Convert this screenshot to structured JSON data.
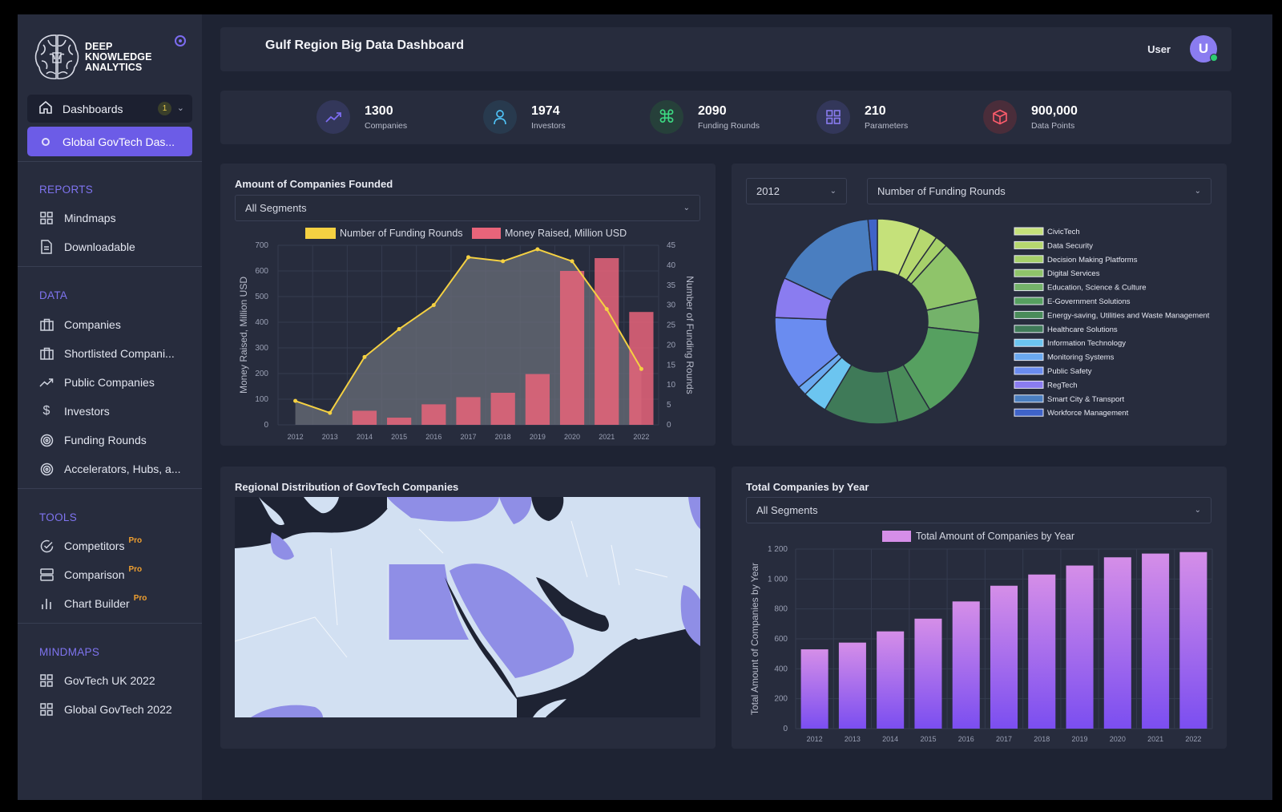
{
  "brand": {
    "line1": "DEEP",
    "line2": "KNOWLEDGE",
    "line3": "ANALYTICS"
  },
  "sidebar": {
    "dashboards": {
      "label": "Dashboards",
      "badge": "1"
    },
    "active_item": "Global GovTech Das...",
    "sections": {
      "reports": "REPORTS",
      "data": "DATA",
      "tools": "TOOLS",
      "mindmaps": "MINDMAPS"
    },
    "reports": [
      {
        "label": "Mindmaps",
        "icon": "grid-icon"
      },
      {
        "label": "Downloadable",
        "icon": "document-icon"
      }
    ],
    "data": [
      {
        "label": "Companies",
        "icon": "briefcase-icon"
      },
      {
        "label": "Shortlisted Compani...",
        "icon": "briefcase-icon"
      },
      {
        "label": "Public Companies",
        "icon": "trend-icon"
      },
      {
        "label": "Investors",
        "icon": "dollar-icon"
      },
      {
        "label": "Funding Rounds",
        "icon": "target-icon"
      },
      {
        "label": "Accelerators, Hubs, a...",
        "icon": "target-icon"
      }
    ],
    "tools": [
      {
        "label": "Competitors",
        "badge": "Pro",
        "icon": "check-circle-icon"
      },
      {
        "label": "Comparison",
        "badge": "Pro",
        "icon": "server-icon"
      },
      {
        "label": "Chart Builder",
        "badge": "Pro",
        "icon": "bar-chart-icon"
      }
    ],
    "mindmaps": [
      {
        "label": "GovTech UK 2022",
        "icon": "grid-icon"
      },
      {
        "label": "Global GovTech 2022",
        "icon": "grid-icon"
      }
    ]
  },
  "header": {
    "title": "Gulf Region Big Data Dashboard",
    "user_label": "User",
    "avatar_letter": "U"
  },
  "stats": [
    {
      "value": "1300",
      "label": "Companies",
      "icon": "trend-icon",
      "color": "#7c6cf0",
      "bg": "#33375a"
    },
    {
      "value": "1974",
      "label": "Investors",
      "icon": "user-icon",
      "color": "#4fc3f7",
      "bg": "#283a4e"
    },
    {
      "value": "2090",
      "label": "Funding Rounds",
      "icon": "command-icon",
      "color": "#3ddc84",
      "bg": "#26403a"
    },
    {
      "value": "210",
      "label": "Parameters",
      "icon": "grid-icon",
      "color": "#8a7cf0",
      "bg": "#33375a"
    },
    {
      "value": "900,000",
      "label": "Data Points",
      "icon": "box-icon",
      "color": "#ff5c6c",
      "bg": "#4a2d3a"
    }
  ],
  "companies_founded": {
    "title": "Amount of Companies Founded",
    "segment": "All Segments",
    "chart_data": {
      "type": "bar",
      "categories": [
        "2012",
        "2013",
        "2014",
        "2015",
        "2016",
        "2017",
        "2018",
        "2019",
        "2020",
        "2021",
        "2022"
      ],
      "series": [
        {
          "name": "Money Raised, Million USD",
          "type": "bar",
          "axis": "left",
          "color": "#e8647a",
          "values": [
            0,
            0,
            55,
            28,
            80,
            108,
            125,
            198,
            600,
            650,
            440
          ]
        },
        {
          "name": "Number of Funding Rounds",
          "type": "area",
          "axis": "right",
          "color": "#f5d142",
          "values": [
            6,
            3,
            17,
            24,
            30,
            42,
            41,
            44,
            41,
            29,
            14
          ]
        }
      ],
      "ylabel": "Money Raised, Million USD",
      "y2label": "Number of Funding Rounds",
      "ylim": [
        0,
        700
      ],
      "y2lim": [
        0,
        45
      ],
      "yticks": [
        0,
        100,
        200,
        300,
        400,
        500,
        600,
        700
      ],
      "y2ticks": [
        0,
        5,
        10,
        15,
        20,
        25,
        30,
        35,
        40,
        45
      ],
      "legend": "top",
      "grid": true
    }
  },
  "donut": {
    "year": "2012",
    "metric": "Number of Funding Rounds",
    "chart_data": {
      "type": "pie",
      "categories": [
        "CivicTech",
        "Data Security",
        "Decision Making Platforms",
        "Digital Services",
        "Education, Science & Culture",
        "E-Government Solutions",
        "Energy-saving, Utilities and Waste Management",
        "Healthcare Solutions",
        "Information Technology",
        "Monitoring Systems",
        "Public Safety",
        "RegTech",
        "Smart City & Transport",
        "Workforce Management"
      ],
      "values": [
        7,
        3,
        2,
        10,
        5.5,
        15,
        5.5,
        12,
        4,
        1.5,
        12,
        6.5,
        17,
        1.5
      ],
      "colors": [
        "#c5e17a",
        "#b6d86f",
        "#a6d06a",
        "#8fc46a",
        "#74b26a",
        "#56a060",
        "#4a8c5a",
        "#3f7a58",
        "#6cc5f0",
        "#6aa9f0",
        "#6a8cf0",
        "#8a7cf0",
        "#4a7ec0",
        "#3f63c8"
      ],
      "legend": "right"
    }
  },
  "map": {
    "title": "Regional Distribution of GovTech Companies"
  },
  "total_companies": {
    "title": "Total Companies by Year",
    "segment": "All Segments",
    "chart_data": {
      "type": "bar",
      "categories": [
        "2012",
        "2013",
        "2014",
        "2015",
        "2016",
        "2017",
        "2018",
        "2019",
        "2020",
        "2021",
        "2022"
      ],
      "series": [
        {
          "name": "Total Amount of Companies by Year",
          "values": [
            530,
            575,
            650,
            735,
            850,
            955,
            1030,
            1090,
            1145,
            1170,
            1180
          ]
        }
      ],
      "ylabel": "Total Amount of Companies by Year",
      "ylim": [
        0,
        1200
      ],
      "yticks": [
        0,
        200,
        400,
        600,
        800,
        1000,
        1200
      ],
      "ytick_labels": [
        "0",
        "200",
        "400",
        "600",
        "800",
        "1 000",
        "1 200"
      ],
      "legend": "top",
      "grid": true
    }
  }
}
